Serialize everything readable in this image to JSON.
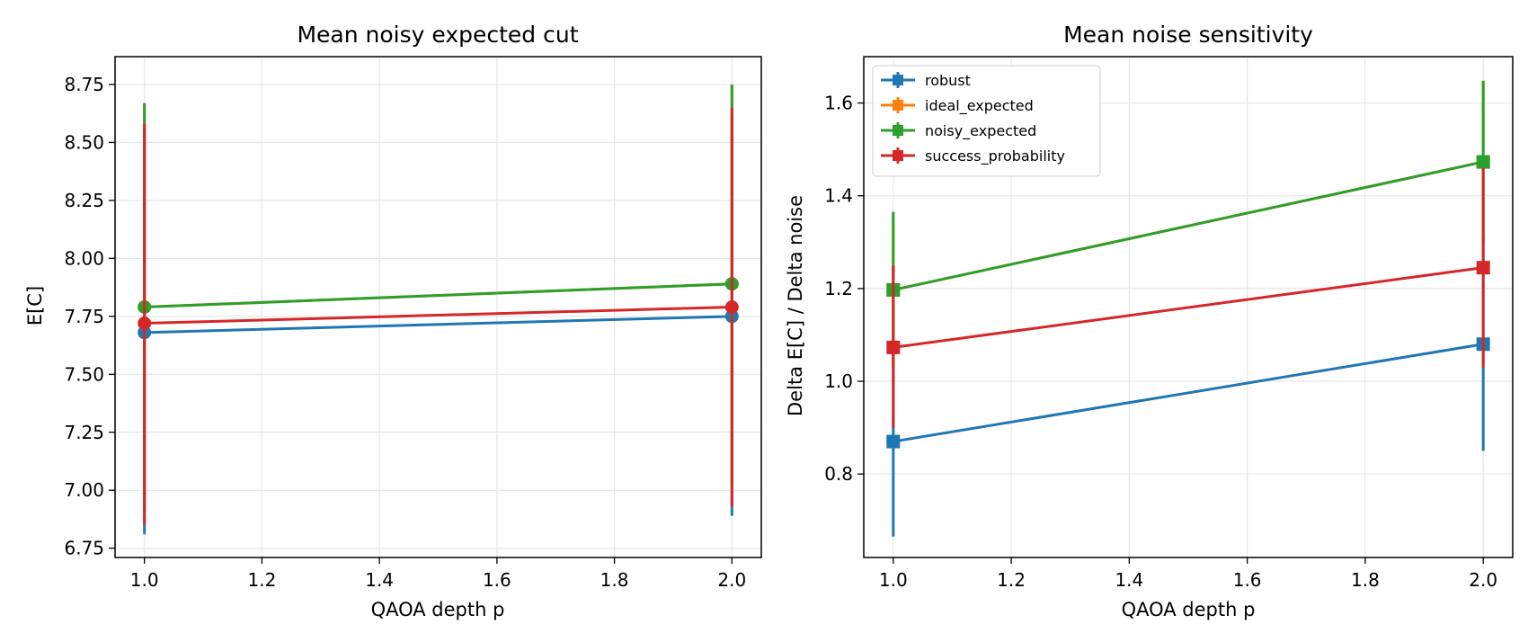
{
  "colors": {
    "robust": "#1f77b4",
    "ideal_expected": "#ff7f0e",
    "noisy_expected": "#2ca02c",
    "success_probability": "#d62728",
    "grid": "#e6e6e6",
    "axes": "#000000"
  },
  "chart_data": [
    {
      "type": "line",
      "title": "Mean noisy expected cut",
      "xlabel": "QAOA depth p",
      "ylabel": "E[C]",
      "xlim": [
        0.95,
        2.05
      ],
      "ylim": [
        6.71,
        8.87
      ],
      "xticks": [
        1.0,
        1.2,
        1.4,
        1.6,
        1.8,
        2.0
      ],
      "xtick_labels": [
        "1.0",
        "1.2",
        "1.4",
        "1.6",
        "1.8",
        "2.0"
      ],
      "yticks": [
        6.75,
        7.0,
        7.25,
        7.5,
        7.75,
        8.0,
        8.25,
        8.5,
        8.75
      ],
      "ytick_labels": [
        "6.75",
        "7.00",
        "7.25",
        "7.50",
        "7.75",
        "8.00",
        "8.25",
        "8.50",
        "8.75"
      ],
      "grid": true,
      "marker": "circle",
      "x": [
        1,
        2
      ],
      "series": [
        {
          "key": "robust",
          "values": [
            7.68,
            7.75
          ],
          "err_low": [
            6.81,
            6.89
          ],
          "err_high": [
            8.55,
            8.61
          ]
        },
        {
          "key": "ideal_expected",
          "values": [
            7.79,
            7.89
          ],
          "err_low": [
            6.91,
            7.02
          ],
          "err_high": [
            8.67,
            8.75
          ]
        },
        {
          "key": "noisy_expected",
          "values": [
            7.79,
            7.89
          ],
          "err_low": [
            6.91,
            7.02
          ],
          "err_high": [
            8.67,
            8.75
          ]
        },
        {
          "key": "success_probability",
          "values": [
            7.72,
            7.79
          ],
          "err_low": [
            6.85,
            6.93
          ],
          "err_high": [
            8.58,
            8.65
          ]
        }
      ]
    },
    {
      "type": "line",
      "title": "Mean noise sensitivity",
      "xlabel": "QAOA depth p",
      "ylabel": "Delta E[C] / Delta noise",
      "xlim": [
        0.95,
        2.05
      ],
      "ylim": [
        0.62,
        1.7
      ],
      "xticks": [
        1.0,
        1.2,
        1.4,
        1.6,
        1.8,
        2.0
      ],
      "xtick_labels": [
        "1.0",
        "1.2",
        "1.4",
        "1.6",
        "1.8",
        "2.0"
      ],
      "yticks": [
        0.8,
        1.0,
        1.2,
        1.4,
        1.6
      ],
      "ytick_labels": [
        "0.8",
        "1.0",
        "1.2",
        "1.4",
        "1.6"
      ],
      "grid": true,
      "marker": "square",
      "legend": "upper-left",
      "x": [
        1,
        2
      ],
      "series": [
        {
          "name": "robust",
          "key": "robust",
          "values": [
            0.87,
            1.08
          ],
          "err_low": [
            0.665,
            0.85
          ],
          "err_high": [
            1.075,
            1.31
          ]
        },
        {
          "name": "ideal_expected",
          "key": "ideal_expected",
          "values": [
            1.197,
            1.473
          ],
          "err_low": [
            1.03,
            1.3
          ],
          "err_high": [
            1.365,
            1.648
          ]
        },
        {
          "name": "noisy_expected",
          "key": "noisy_expected",
          "values": [
            1.197,
            1.473
          ],
          "err_low": [
            1.03,
            1.3
          ],
          "err_high": [
            1.365,
            1.648
          ]
        },
        {
          "name": "success_probability",
          "key": "success_probability",
          "values": [
            1.073,
            1.245
          ],
          "err_low": [
            0.9,
            1.03
          ],
          "err_high": [
            1.25,
            1.46
          ]
        }
      ]
    }
  ]
}
